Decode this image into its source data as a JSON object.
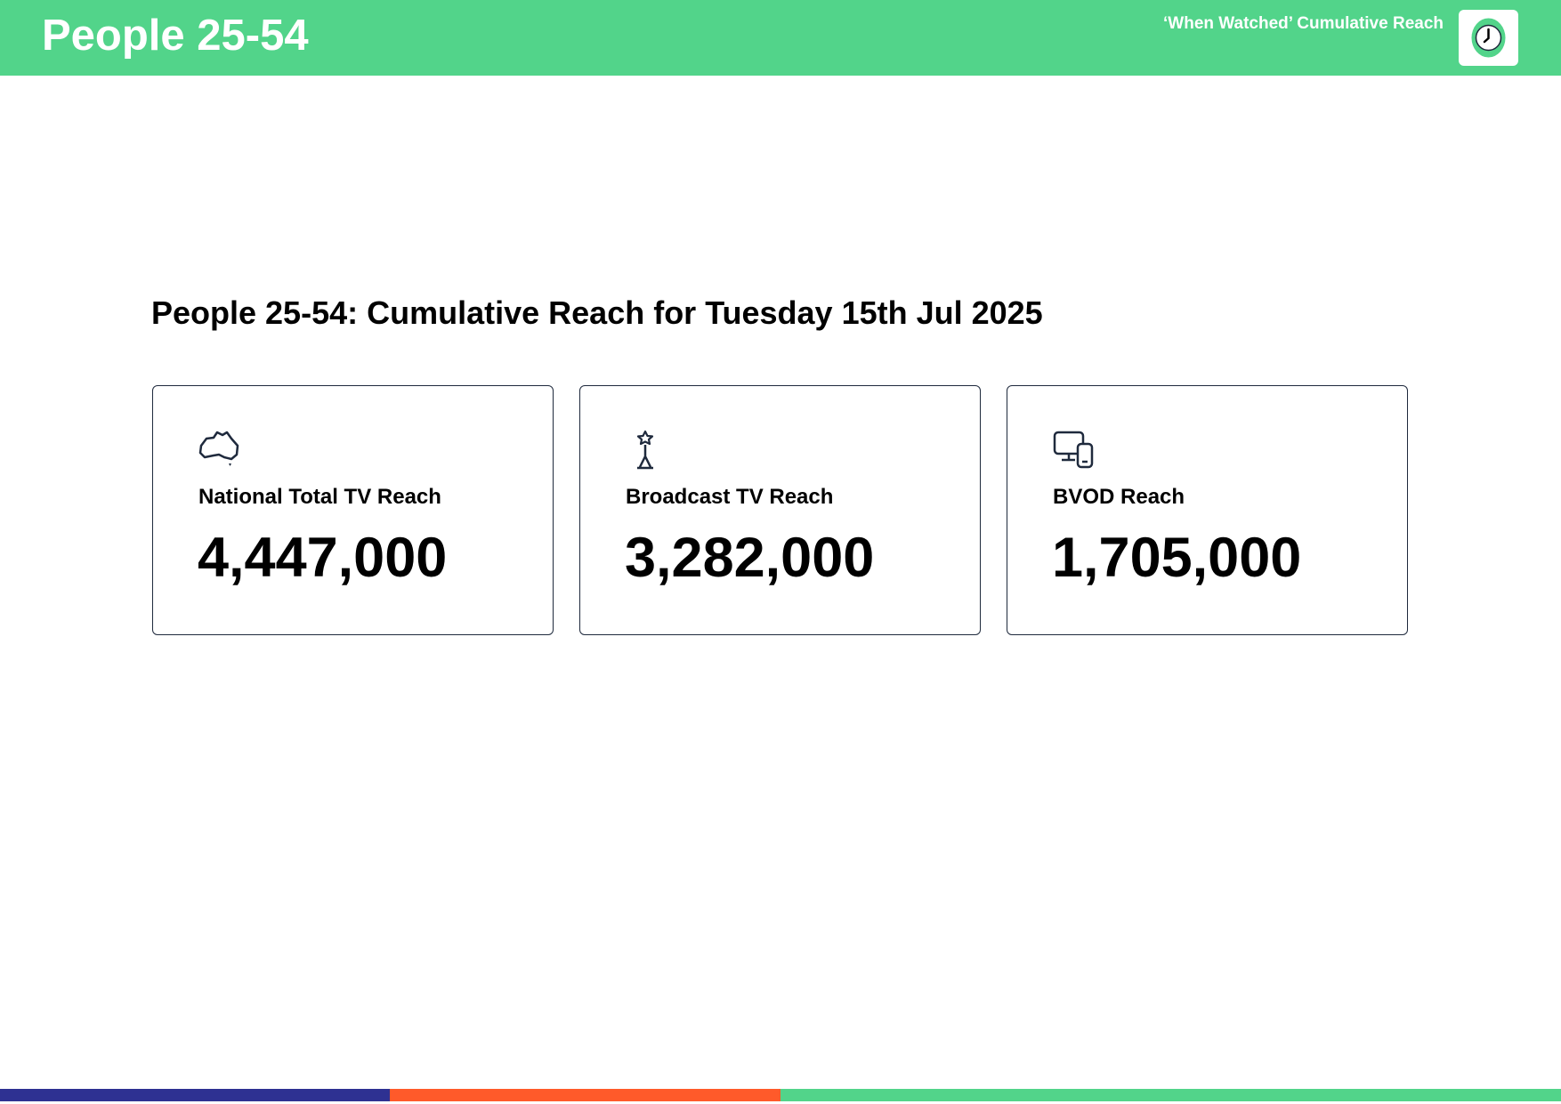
{
  "header": {
    "title": "People 25-54",
    "subtitle": "‘When Watched’ Cumulative Reach"
  },
  "heading": "People 25-54: Cumulative Reach for Tuesday 15th Jul 2025",
  "cards": [
    {
      "label": "National Total TV Reach",
      "value": "4,447,000"
    },
    {
      "label": "Broadcast TV Reach",
      "value": "3,282,000"
    },
    {
      "label": "BVOD Reach",
      "value": "1,705,000"
    }
  ]
}
